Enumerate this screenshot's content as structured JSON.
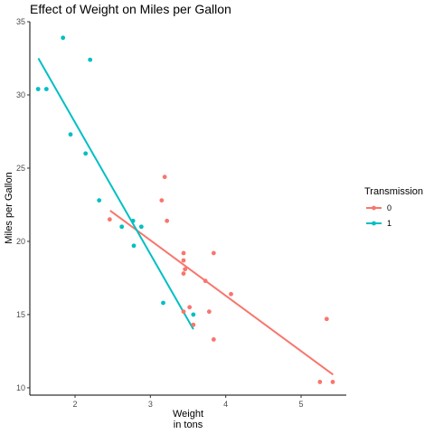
{
  "chart_data": {
    "type": "scatter",
    "title": "Effect of Weight on Miles per Gallon",
    "xlabel": [
      "Weight",
      "in tons"
    ],
    "ylabel": "Miles per Gallon",
    "xlim": [
      1.4,
      5.6
    ],
    "ylim": [
      9.5,
      35
    ],
    "xticks": [
      2,
      3,
      4,
      5
    ],
    "yticks": [
      10,
      15,
      20,
      25,
      30,
      35
    ],
    "grid": false,
    "legend": {
      "title": "Transmission",
      "position": "right"
    },
    "series": [
      {
        "name": "0",
        "color": "#F8766D",
        "points": [
          [
            2.46,
            21.5
          ],
          [
            3.19,
            24.4
          ],
          [
            3.15,
            22.8
          ],
          [
            3.22,
            21.4
          ],
          [
            3.44,
            19.2
          ],
          [
            3.84,
            19.2
          ],
          [
            3.44,
            18.7
          ],
          [
            3.46,
            18.1
          ],
          [
            3.44,
            17.8
          ],
          [
            3.73,
            17.3
          ],
          [
            4.07,
            16.4
          ],
          [
            3.52,
            15.5
          ],
          [
            3.78,
            15.2
          ],
          [
            3.44,
            15.2
          ],
          [
            3.57,
            14.3
          ],
          [
            3.84,
            13.3
          ],
          [
            5.34,
            14.7
          ],
          [
            5.25,
            10.4
          ],
          [
            5.42,
            10.4
          ]
        ],
        "fit": [
          [
            2.465,
            22.1
          ],
          [
            5.424,
            10.9
          ]
        ]
      },
      {
        "name": "1",
        "color": "#00BFC4",
        "points": [
          [
            1.84,
            33.9
          ],
          [
            2.2,
            32.4
          ],
          [
            1.51,
            30.4
          ],
          [
            1.62,
            30.4
          ],
          [
            1.94,
            27.3
          ],
          [
            2.14,
            26.0
          ],
          [
            2.32,
            22.8
          ],
          [
            2.77,
            21.4
          ],
          [
            2.62,
            21.0
          ],
          [
            2.88,
            21.0
          ],
          [
            2.78,
            19.7
          ],
          [
            3.17,
            15.8
          ],
          [
            3.57,
            15.0
          ]
        ],
        "fit": [
          [
            1.513,
            32.5
          ],
          [
            3.57,
            14.0
          ]
        ]
      }
    ]
  }
}
